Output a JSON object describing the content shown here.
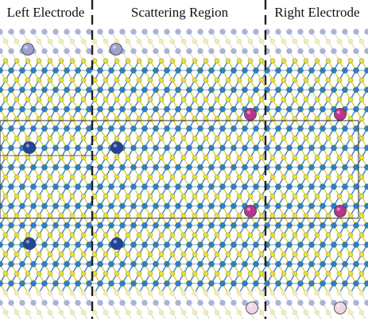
{
  "labels": {
    "left": "Left Electrode",
    "center": "Scattering Region",
    "right": "Right Electrode"
  },
  "colors": {
    "s_atom": "#e8e13a",
    "mo_atom": "#2a7fc9",
    "bond_yellow": "#d9d23a",
    "bond_blue": "#3d7fc8",
    "faded_mo": "#a7b4da",
    "faded_s": "#f1eeae",
    "dopant_blue": "#22449a",
    "dopant_magenta": "#b8348e",
    "dopant_lavender": "#9ea0d2",
    "dopant_pink": "#f0d6e6",
    "divider": "#222222",
    "supercell_line": "#333333"
  },
  "atom_legend": {
    "s_atom": "yellow sphere",
    "mo_atom": "blue sphere",
    "dopant": "highlighted sphere"
  }
}
